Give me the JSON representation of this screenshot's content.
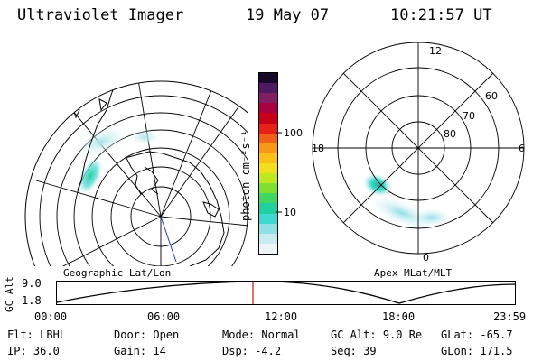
{
  "header": {
    "title": "Ultraviolet Imager",
    "date": "19 May 07",
    "time": "10:21:57 UT"
  },
  "left_map": {
    "label": "Geographic Lat/Lon"
  },
  "right_map": {
    "label": "Apex MLat/MLT",
    "mlt_labels": {
      "top": "12",
      "left": "18",
      "right": "6",
      "bottom": "0"
    },
    "mlat_labels": [
      "60",
      "70",
      "80"
    ]
  },
  "colorbar": {
    "unit": "photon cm⁻²s⁻¹",
    "ticks": [
      {
        "label": "100",
        "value": 100
      },
      {
        "label": "10",
        "value": 10
      }
    ],
    "colors": [
      "#eef4f6",
      "#c8ecf0",
      "#8fe0e4",
      "#40d8d0",
      "#20d0a0",
      "#40d860",
      "#80e030",
      "#c0e820",
      "#f0e020",
      "#f8c018",
      "#f89818",
      "#f06018",
      "#e82018",
      "#c80018",
      "#a80040",
      "#802060",
      "#501860",
      "#180828"
    ]
  },
  "altitude_plot": {
    "axis_label": "GC Alt",
    "y_ticks": [
      "9.0",
      "1.8"
    ],
    "x_ticks": [
      "00:00",
      "06:00",
      "12:00",
      "18:00",
      "23:59"
    ],
    "marker_time": "10:21:57",
    "marker_color": "#e02020"
  },
  "status": {
    "row1": [
      {
        "key": "Flt:",
        "value": "LBHL"
      },
      {
        "key": "Door:",
        "value": "Open"
      },
      {
        "key": "Mode:",
        "value": "Normal"
      },
      {
        "key": "GC Alt:",
        "value": "9.0 Re"
      },
      {
        "key": "GLat:",
        "value": "-65.7"
      }
    ],
    "row2": [
      {
        "key": "IP:",
        "value": "36.0"
      },
      {
        "key": "Gain:",
        "value": "14"
      },
      {
        "key": "Dsp:",
        "value": "-4.2"
      },
      {
        "key": "Seq:",
        "value": "39"
      },
      {
        "key": "GLon:",
        "value": "171.5"
      }
    ]
  }
}
